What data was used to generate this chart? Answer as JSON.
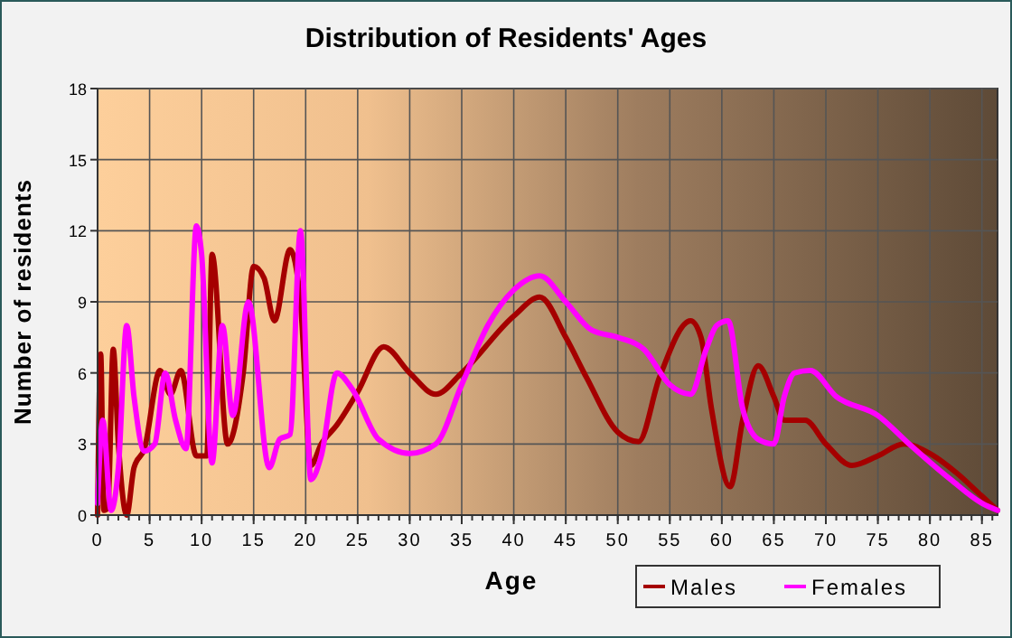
{
  "chart_data": {
    "type": "line",
    "title": "Distribution of Residents' Ages",
    "xlabel": "Age",
    "ylabel": "Number of residents",
    "xlim": [
      0,
      86.5
    ],
    "xticks": [
      0,
      5,
      10,
      15,
      20,
      25,
      30,
      35,
      40,
      45,
      50,
      55,
      60,
      65,
      70,
      75,
      80,
      85
    ],
    "ylim": [
      0,
      18
    ],
    "yticks": [
      0,
      3,
      6,
      9,
      12,
      15,
      18
    ],
    "grid": true,
    "legend": "bottom right",
    "marker": "none",
    "line_style": "solid",
    "series": [
      {
        "name": "Males",
        "color": "#a50000",
        "x": [
          0,
          0.3,
          0.6,
          1,
          1.5,
          2,
          2.8,
          3.5,
          4.5,
          6,
          7,
          8,
          9.5,
          10.5,
          11,
          12.5,
          14,
          15,
          16,
          17,
          18.5,
          19.5,
          20.5,
          21.5,
          23,
          25,
          27.5,
          30,
          32.5,
          35,
          40,
          42.5,
          45,
          47,
          50,
          52,
          54,
          57,
          58,
          59,
          60.8,
          62,
          63.5,
          65,
          66,
          68,
          70,
          72.5,
          75,
          77.5,
          80,
          82.5,
          85,
          86.5
        ],
        "values": [
          0,
          6.8,
          0.2,
          0.3,
          7,
          3,
          0,
          2,
          2.8,
          6.1,
          5.1,
          6.1,
          2.5,
          2.5,
          11,
          3,
          6,
          10.5,
          10,
          8.2,
          11.2,
          9,
          2.1,
          3,
          3.8,
          5.2,
          7.1,
          6,
          5.1,
          6,
          8.4,
          9.2,
          7.5,
          5.8,
          3.5,
          3.1,
          5.8,
          8.2,
          7.5,
          4.5,
          1.2,
          4,
          6.3,
          5,
          4,
          4,
          3,
          2.1,
          2.5,
          3,
          2.6,
          1.8,
          0.8,
          0.2
        ]
      },
      {
        "name": "Females",
        "color": "#ff00ff",
        "x": [
          0,
          0.5,
          1.3,
          2,
          2.8,
          3.5,
          4.5,
          5.5,
          6.5,
          7.5,
          8.5,
          9.5,
          10,
          11,
          12,
          13,
          14.5,
          16.5,
          17.5,
          18.5,
          19.5,
          20.5,
          21.5,
          23,
          24.5,
          27,
          30,
          32.5,
          35,
          37.5,
          40,
          42.5,
          45,
          47.5,
          50,
          52.5,
          55,
          57,
          58.5,
          59.5,
          60.6,
          62,
          63.5,
          65,
          66,
          67,
          68.5,
          71,
          75,
          78,
          82,
          85,
          86.5
        ],
        "values": [
          0.5,
          4,
          0.2,
          2,
          8,
          5,
          2.7,
          3,
          6,
          4,
          2.8,
          12.2,
          11,
          2.2,
          8,
          4.2,
          9,
          2,
          3.2,
          3.4,
          12,
          1.5,
          2.5,
          6,
          5.3,
          3.2,
          2.6,
          3,
          5.5,
          8,
          9.5,
          10.1,
          9,
          7.8,
          7.5,
          7,
          5.5,
          5.1,
          7,
          8,
          8.2,
          4.5,
          3.2,
          3,
          5,
          6,
          6.1,
          5,
          4.2,
          3,
          1.5,
          0.5,
          0.2
        ]
      }
    ]
  }
}
